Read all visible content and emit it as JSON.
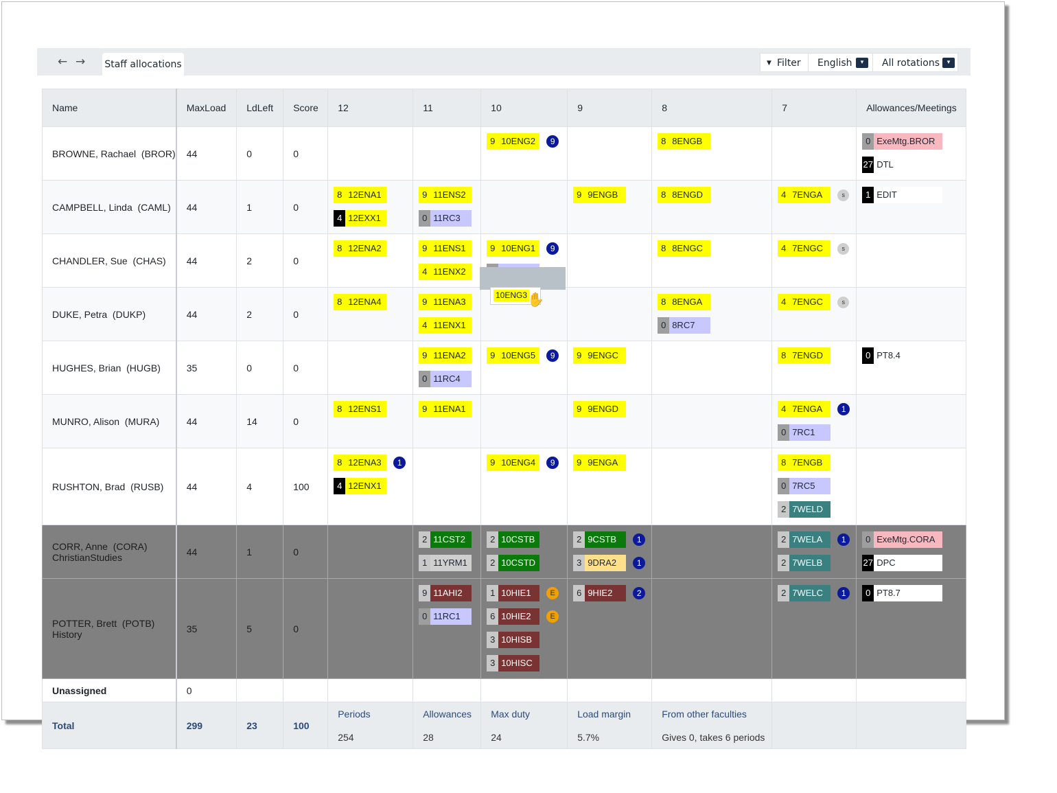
{
  "toolbar": {
    "back_icon": "←",
    "forward_icon": "→",
    "tab_label": "Staff allocations",
    "filter_icon": "▼",
    "filter_label": "Filter",
    "subject_select": "English",
    "rotation_select": "All rotations",
    "caret_icon": "▾"
  },
  "columns": [
    "Name",
    "MaxLoad",
    "LdLeft",
    "Score",
    "12",
    "11",
    "10",
    "9",
    "8",
    "7",
    "Allowances/Meetings"
  ],
  "colors": {
    "english": "#ffff00",
    "religion_bg": "#c8c8ff",
    "religion_num": "#9e9e9e",
    "christian_studies": "#0a7a0a",
    "welfare": "#3a8080",
    "history": "#7a3333",
    "drama": "#ffe08a",
    "yrm": "#cfcfcf",
    "exe_meeting": "#f7b8c0",
    "black_num": "#000000",
    "badge_blue": "#0a1a9a",
    "badge_orange": "#f0a000"
  },
  "rows": [
    {
      "name": "BROWNE, Rachael  (BROR)",
      "max": "44",
      "left": "0",
      "score": "0",
      "c12": [],
      "c11": [],
      "c10": [
        {
          "n": "9",
          "c": "10ENG2",
          "b": "9"
        }
      ],
      "c9": [],
      "c8": [
        {
          "n": "8",
          "c": "8ENGB"
        }
      ],
      "c7": [],
      "allow": [
        {
          "n": "0",
          "c": "ExeMtg.BROR",
          "k": "exe"
        },
        {
          "n": "27",
          "c": "DTL",
          "k": "black"
        }
      ]
    },
    {
      "name": "CAMPBELL, Linda  (CAML)",
      "max": "44",
      "left": "1",
      "score": "0",
      "c12": [
        {
          "n": "8",
          "c": "12ENA1"
        },
        {
          "n": "4",
          "c": "12EXX1",
          "k": "blacknum"
        }
      ],
      "c11": [
        {
          "n": "9",
          "c": "11ENS2"
        },
        {
          "n": "0",
          "c": "11RC3",
          "k": "rc"
        }
      ],
      "c10": [],
      "c9": [
        {
          "n": "9",
          "c": "9ENGB"
        }
      ],
      "c8": [
        {
          "n": "8",
          "c": "8ENGD"
        }
      ],
      "c7": [
        {
          "n": "4",
          "c": "7ENGA",
          "b": "s"
        }
      ],
      "allow": [
        {
          "n": "1",
          "c": "EDIT",
          "k": "black"
        }
      ]
    },
    {
      "name": "CHANDLER, Sue  (CHAS)",
      "max": "44",
      "left": "2",
      "score": "0",
      "c12": [
        {
          "n": "8",
          "c": "12ENA2"
        }
      ],
      "c11": [
        {
          "n": "9",
          "c": "11ENS1"
        },
        {
          "n": "4",
          "c": "11ENX2"
        }
      ],
      "c10": [
        {
          "n": "9",
          "c": "10ENG1",
          "b": "9"
        },
        {
          "n": "0",
          "c": "10RC7",
          "k": "rc"
        }
      ],
      "c9": [],
      "c8": [
        {
          "n": "8",
          "c": "8ENGC"
        }
      ],
      "c7": [
        {
          "n": "4",
          "c": "7ENGC",
          "b": "s"
        }
      ],
      "allow": []
    },
    {
      "name": "DUKE, Petra  (DUKP)",
      "max": "44",
      "left": "2",
      "score": "0",
      "c12": [
        {
          "n": "8",
          "c": "12ENA4"
        }
      ],
      "c11": [
        {
          "n": "9",
          "c": "11ENA3"
        },
        {
          "n": "4",
          "c": "11ENX1"
        }
      ],
      "c10": [],
      "c9": [],
      "c8": [
        {
          "n": "8",
          "c": "8ENGA"
        },
        {
          "n": "0",
          "c": "8RC7",
          "k": "rc"
        }
      ],
      "c7": [
        {
          "n": "4",
          "c": "7ENGC",
          "b": "s"
        }
      ],
      "allow": []
    },
    {
      "name": "HUGHES, Brian  (HUGB)",
      "max": "35",
      "left": "0",
      "score": "0",
      "c12": [],
      "c11": [
        {
          "n": "9",
          "c": "11ENA2"
        },
        {
          "n": "0",
          "c": "11RC4",
          "k": "rc"
        }
      ],
      "c10": [
        {
          "n": "9",
          "c": "10ENG5",
          "b": "9"
        }
      ],
      "c9": [
        {
          "n": "9",
          "c": "9ENGC"
        }
      ],
      "c8": [],
      "c7": [
        {
          "n": "8",
          "c": "7ENGD"
        }
      ],
      "allow": [
        {
          "n": "0",
          "c": "PT8.4",
          "k": "black"
        }
      ]
    },
    {
      "name": "MUNRO, Alison  (MURA)",
      "max": "44",
      "left": "14",
      "score": "0",
      "c12": [
        {
          "n": "8",
          "c": "12ENS1"
        }
      ],
      "c11": [
        {
          "n": "9",
          "c": "11ENA1"
        }
      ],
      "c10": [],
      "c9": [
        {
          "n": "9",
          "c": "9ENGD"
        }
      ],
      "c8": [],
      "c7": [
        {
          "n": "4",
          "c": "7ENGA",
          "b": "1"
        },
        {
          "n": "0",
          "c": "7RC1",
          "k": "rc"
        }
      ],
      "allow": []
    },
    {
      "name": "RUSHTON, Brad  (RUSB)",
      "max": "44",
      "left": "4",
      "score": "100",
      "c12": [
        {
          "n": "8",
          "c": "12ENA3",
          "b": "1"
        },
        {
          "n": "4",
          "c": "12ENX1",
          "k": "blacknum"
        }
      ],
      "c11": [],
      "c10": [
        {
          "n": "9",
          "c": "10ENG4",
          "b": "9"
        }
      ],
      "c9": [
        {
          "n": "9",
          "c": "9ENGA"
        }
      ],
      "c8": [],
      "c7": [
        {
          "n": "8",
          "c": "7ENGB"
        },
        {
          "n": "0",
          "c": "7RC5",
          "k": "rc"
        },
        {
          "n": "2",
          "c": "7WELD",
          "k": "wel"
        }
      ],
      "allow": []
    }
  ],
  "dark_rows": [
    {
      "name": "CORR, Anne  (CORA)\nChristianStudies",
      "max": "44",
      "left": "1",
      "score": "0",
      "c12": [],
      "c11": [
        {
          "n": "2",
          "c": "11CST2",
          "k": "cst"
        },
        {
          "n": "1",
          "c": "11YRM1",
          "k": "yrm"
        }
      ],
      "c10": [
        {
          "n": "2",
          "c": "10CSTB",
          "k": "cst"
        },
        {
          "n": "2",
          "c": "10CSTD",
          "k": "cst"
        }
      ],
      "c9": [
        {
          "n": "2",
          "c": "9CSTB",
          "k": "cst",
          "b": "1"
        },
        {
          "n": "3",
          "c": "9DRA2",
          "k": "dra",
          "b": "1"
        }
      ],
      "c8": [],
      "c7": [
        {
          "n": "2",
          "c": "7WELA",
          "k": "wel",
          "b": "1"
        },
        {
          "n": "2",
          "c": "7WELB",
          "k": "wel"
        }
      ],
      "allow": [
        {
          "n": "0",
          "c": "ExeMtg.CORA",
          "k": "exe"
        },
        {
          "n": "27",
          "c": "DPC",
          "k": "black"
        }
      ]
    },
    {
      "name": "POTTER, Brett  (POTB)\nHistory",
      "max": "35",
      "left": "5",
      "score": "0",
      "c12": [],
      "c11": [
        {
          "n": "9",
          "c": "11AHI2",
          "k": "his"
        },
        {
          "n": "0",
          "c": "11RC1",
          "k": "rc"
        }
      ],
      "c10": [
        {
          "n": "1",
          "c": "10HIE1",
          "k": "his",
          "b": "E"
        },
        {
          "n": "6",
          "c": "10HIE2",
          "k": "his",
          "b": "E"
        },
        {
          "n": "3",
          "c": "10HISB",
          "k": "his"
        },
        {
          "n": "3",
          "c": "10HISC",
          "k": "his"
        }
      ],
      "c9": [
        {
          "n": "6",
          "c": "9HIE2",
          "k": "his",
          "b": "2"
        }
      ],
      "c8": [],
      "c7": [
        {
          "n": "2",
          "c": "7WELC",
          "k": "wel",
          "b": "1"
        }
      ],
      "allow": [
        {
          "n": "0",
          "c": "PT8.7",
          "k": "black"
        }
      ]
    }
  ],
  "unassigned": {
    "label": "Unassigned",
    "value": "0"
  },
  "total": {
    "label": "Total",
    "max": "299",
    "left": "23",
    "score": "100",
    "stats": [
      {
        "label": "Periods",
        "value": "254"
      },
      {
        "label": "Allowances",
        "value": "28"
      },
      {
        "label": "Max duty",
        "value": "24"
      },
      {
        "label": "Load margin",
        "value": "5.7%"
      },
      {
        "label": "From other faculties",
        "value": "Gives 0, takes 6 periods"
      }
    ]
  },
  "drag": {
    "code": "10ENG3",
    "cursor_icon": "✋"
  }
}
